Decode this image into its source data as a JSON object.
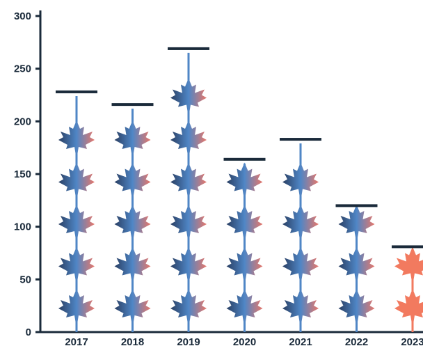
{
  "chart_data": {
    "type": "bar",
    "title": "",
    "xlabel": "",
    "ylabel": "",
    "ylim": [
      0,
      300
    ],
    "yticks": [
      0,
      50,
      100,
      150,
      200,
      250,
      300
    ],
    "categories": [
      "2017",
      "2018",
      "2019",
      "2020",
      "2021",
      "2022",
      "2023"
    ],
    "values": [
      228,
      216,
      269,
      164,
      183,
      120,
      81
    ],
    "grid": false,
    "legend": "none",
    "colors": {
      "axis": "#1a2a3a",
      "leaf_gradient_dark": "#2a3f63",
      "leaf_gradient_mid": "#4f86c6",
      "leaf_gradient_light": "#e8776a",
      "highlight_leaf": "#f27a5f",
      "stem": "#4f86c6",
      "bar_cap": "#1a2a3a"
    },
    "icon": "maple-leaf-icon",
    "highlight_category": "2023"
  }
}
